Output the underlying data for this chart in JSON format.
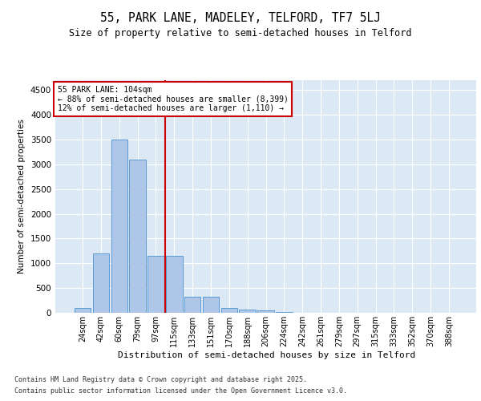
{
  "title_line1": "55, PARK LANE, MADELEY, TELFORD, TF7 5LJ",
  "title_line2": "Size of property relative to semi-detached houses in Telford",
  "xlabel": "Distribution of semi-detached houses by size in Telford",
  "ylabel": "Number of semi-detached properties",
  "categories": [
    "24sqm",
    "42sqm",
    "60sqm",
    "79sqm",
    "97sqm",
    "115sqm",
    "133sqm",
    "151sqm",
    "170sqm",
    "188sqm",
    "206sqm",
    "224sqm",
    "242sqm",
    "261sqm",
    "279sqm",
    "297sqm",
    "315sqm",
    "333sqm",
    "352sqm",
    "370sqm",
    "388sqm"
  ],
  "values": [
    100,
    1200,
    3500,
    3100,
    1150,
    1150,
    325,
    325,
    100,
    60,
    50,
    10,
    5,
    3,
    2,
    1,
    1,
    0,
    0,
    0,
    0
  ],
  "bar_color": "#aec6e8",
  "bar_edge_color": "#5b9bd5",
  "annotation_text_line1": "55 PARK LANE: 104sqm",
  "annotation_text_line2": "← 88% of semi-detached houses are smaller (8,399)",
  "annotation_text_line3": "12% of semi-detached houses are larger (1,110) →",
  "annotation_box_color": "#ffffff",
  "annotation_box_edge": "#cc0000",
  "property_line_color": "#cc0000",
  "ylim": [
    0,
    4700
  ],
  "yticks": [
    0,
    500,
    1000,
    1500,
    2000,
    2500,
    3000,
    3500,
    4000,
    4500
  ],
  "footnote_line1": "Contains HM Land Registry data © Crown copyright and database right 2025.",
  "footnote_line2": "Contains public sector information licensed under the Open Government Licence v3.0.",
  "plot_background": "#dce9f5",
  "fig_background": "#ffffff"
}
